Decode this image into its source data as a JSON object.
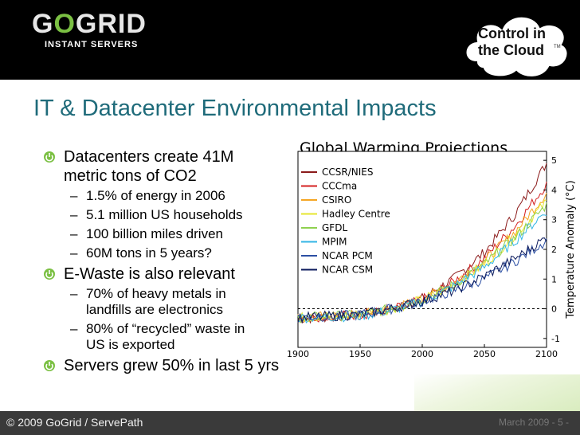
{
  "brand": {
    "logo_text": "GOGRID",
    "logo_sub": "INSTANT SERVERS",
    "tagline_line1": "Control in",
    "tagline_line2": "the Cloud",
    "tm": "TM",
    "accent": "#7bc043"
  },
  "slide": {
    "title": "IT & Datacenter Environmental Impacts",
    "bullets": [
      {
        "text_line1": "Datacenters create 41M",
        "text_line2": "metric tons of CO2",
        "sub": [
          "1.5% of energy in 2006",
          "5.1 million US households",
          "100 billion miles driven",
          "60M tons in 5 years?"
        ]
      },
      {
        "text_line1": "E-Waste is also relevant",
        "sub": [
          {
            "l1": "70% of heavy metals in",
            "l2": "landfills are electronics"
          },
          {
            "l1": "80% of “recycled” waste in",
            "l2": "US is exported"
          }
        ]
      },
      {
        "text_line1": "Servers grew 50% in last 5 yrs"
      }
    ]
  },
  "chart_data": {
    "type": "line",
    "title": "Global Warming Projections",
    "ylabel": "Temperature Anomaly (°C)",
    "xlabel": "",
    "x_ticks": [
      1900,
      1950,
      2000,
      2050,
      2100
    ],
    "y_ticks": [
      -1,
      0,
      1,
      2,
      3,
      4,
      5
    ],
    "xlim": [
      1900,
      2100
    ],
    "ylim": [
      -1.3,
      5.3
    ],
    "zero_line": 0,
    "series": [
      {
        "name": "CCSR/NIES",
        "color": "#8b1a1a",
        "points": [
          [
            1900,
            -0.35
          ],
          [
            1950,
            -0.2
          ],
          [
            1975,
            0.0
          ],
          [
            2000,
            0.35
          ],
          [
            2025,
            1.0
          ],
          [
            2050,
            1.9
          ],
          [
            2075,
            3.2
          ],
          [
            2100,
            4.9
          ]
        ]
      },
      {
        "name": "CCCma",
        "color": "#d42020",
        "points": [
          [
            1900,
            -0.3
          ],
          [
            1950,
            -0.2
          ],
          [
            1975,
            -0.05
          ],
          [
            2000,
            0.3
          ],
          [
            2025,
            0.9
          ],
          [
            2050,
            1.7
          ],
          [
            2075,
            2.8
          ],
          [
            2100,
            4.2
          ]
        ]
      },
      {
        "name": "CSIRO",
        "color": "#f5a623",
        "points": [
          [
            1900,
            -0.3
          ],
          [
            1950,
            -0.2
          ],
          [
            1975,
            0.0
          ],
          [
            2000,
            0.3
          ],
          [
            2025,
            0.85
          ],
          [
            2050,
            1.6
          ],
          [
            2075,
            2.6
          ],
          [
            2100,
            3.9
          ]
        ]
      },
      {
        "name": "Hadley Centre",
        "color": "#e6e62e",
        "points": [
          [
            1900,
            -0.3
          ],
          [
            1950,
            -0.2
          ],
          [
            1975,
            0.0
          ],
          [
            2000,
            0.3
          ],
          [
            2025,
            0.8
          ],
          [
            2050,
            1.5
          ],
          [
            2075,
            2.5
          ],
          [
            2100,
            3.6
          ]
        ]
      },
      {
        "name": "GFDL",
        "color": "#8fd14f",
        "points": [
          [
            1900,
            -0.3
          ],
          [
            1950,
            -0.2
          ],
          [
            1975,
            0.0
          ],
          [
            2000,
            0.3
          ],
          [
            2025,
            0.8
          ],
          [
            2050,
            1.5
          ],
          [
            2075,
            2.4
          ],
          [
            2100,
            3.5
          ]
        ]
      },
      {
        "name": "MPIM",
        "color": "#33b5e5",
        "points": [
          [
            1900,
            -0.3
          ],
          [
            1950,
            -0.25
          ],
          [
            1975,
            -0.05
          ],
          [
            2000,
            0.25
          ],
          [
            2025,
            0.75
          ],
          [
            2050,
            1.4
          ],
          [
            2075,
            2.3
          ],
          [
            2100,
            3.3
          ]
        ]
      },
      {
        "name": "NCAR PCM",
        "color": "#2c4fa3",
        "points": [
          [
            1900,
            -0.3
          ],
          [
            1950,
            -0.2
          ],
          [
            1975,
            0.0
          ],
          [
            2000,
            0.25
          ],
          [
            2025,
            0.6
          ],
          [
            2050,
            1.0
          ],
          [
            2075,
            1.6
          ],
          [
            2100,
            2.3
          ]
        ]
      },
      {
        "name": "NCAR CSM",
        "color": "#0b1a5c",
        "points": [
          [
            1900,
            -0.3
          ],
          [
            1950,
            -0.2
          ],
          [
            1975,
            0.0
          ],
          [
            2000,
            0.25
          ],
          [
            2025,
            0.6
          ],
          [
            2050,
            1.1
          ],
          [
            2075,
            1.7
          ],
          [
            2100,
            2.4
          ]
        ]
      }
    ]
  },
  "footer": {
    "left": "© 2009 GoGrid / ServePath",
    "right": "March 2009 - 5 -"
  }
}
